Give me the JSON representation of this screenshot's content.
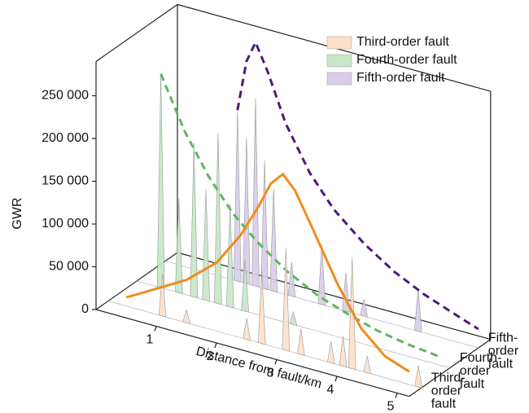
{
  "chart_data": {
    "type": "waterfall3d",
    "xlabel": "Distance from fault/km",
    "ylabel": "GWR",
    "xlim": [
      0,
      5.2
    ],
    "xticks": [
      1,
      2,
      3,
      4,
      5
    ],
    "ylim": [
      0,
      290000
    ],
    "yticks": [
      0,
      {
        "value": 50000,
        "label": "50 000"
      },
      {
        "value": 100000,
        "label": "100 000"
      },
      {
        "value": 150000,
        "label": "150 000"
      },
      {
        "value": 200000,
        "label": "200 000"
      },
      {
        "value": 250000,
        "label": "250 000"
      }
    ],
    "depth_labels": [
      [
        "Third-",
        "order",
        "fault"
      ],
      [
        "Fourth-",
        "order",
        "fault"
      ],
      [
        "Fifth-",
        "order",
        "fault"
      ]
    ],
    "legend": "upper right",
    "series": [
      {
        "name": "Third-order fault",
        "color": "#fde0c8",
        "trend_color": "#f08c1e",
        "trend_style": "solid",
        "x": [
          0.9,
          1.3,
          2.3,
          2.55,
          2.95,
          3.2,
          3.7,
          3.9,
          4.05,
          4.3,
          5.15
        ],
        "values": [
          50000,
          15000,
          25000,
          85000,
          120000,
          30000,
          25000,
          35000,
          130000,
          20000,
          25000
        ],
        "trend_x": [
          0.3,
          0.8,
          1.3,
          1.8,
          2.2,
          2.5,
          2.7,
          2.9,
          3.1,
          3.4,
          3.8,
          4.2,
          4.6,
          5.0
        ],
        "trend_values": [
          10000,
          30000,
          50000,
          80000,
          120000,
          160000,
          190000,
          205000,
          190000,
          150000,
          95000,
          50000,
          25000,
          15000
        ]
      },
      {
        "name": "Fourth-order fault",
        "color": "#c8e6c8",
        "trend_color": "#5cb85c",
        "trend_style": "dashed",
        "x": [
          0.4,
          0.7,
          0.95,
          1.15,
          1.35,
          1.55,
          1.8,
          2.6
        ],
        "values": [
          250000,
          110000,
          180000,
          130000,
          200000,
          120000,
          60000,
          15000
        ],
        "trend_x": [
          0.4,
          0.8,
          1.2,
          1.6,
          2.0,
          2.5,
          3.0,
          3.5,
          4.0,
          4.5,
          5.0
        ],
        "trend_values": [
          250000,
          190000,
          145000,
          110000,
          85000,
          60000,
          42000,
          30000,
          20000,
          14000,
          10000
        ]
      },
      {
        "name": "Fifth-order fault",
        "color": "#d8cce8",
        "trend_color": "#4b1a7a",
        "trend_style": "dashed",
        "x": [
          1.2,
          1.35,
          1.5,
          1.65,
          1.8,
          2.1,
          2.6,
          3.0,
          3.3,
          4.2
        ],
        "values": [
          200000,
          170000,
          220000,
          150000,
          120000,
          40000,
          70000,
          45000,
          20000,
          50000
        ],
        "trend_x": [
          1.2,
          1.35,
          1.5,
          1.7,
          2.0,
          2.4,
          2.8,
          3.3,
          3.8,
          4.3,
          4.8,
          5.2
        ],
        "trend_values": [
          200000,
          260000,
          285000,
          255000,
          200000,
          150000,
          115000,
          85000,
          62000,
          45000,
          32000,
          22000
        ]
      }
    ]
  }
}
